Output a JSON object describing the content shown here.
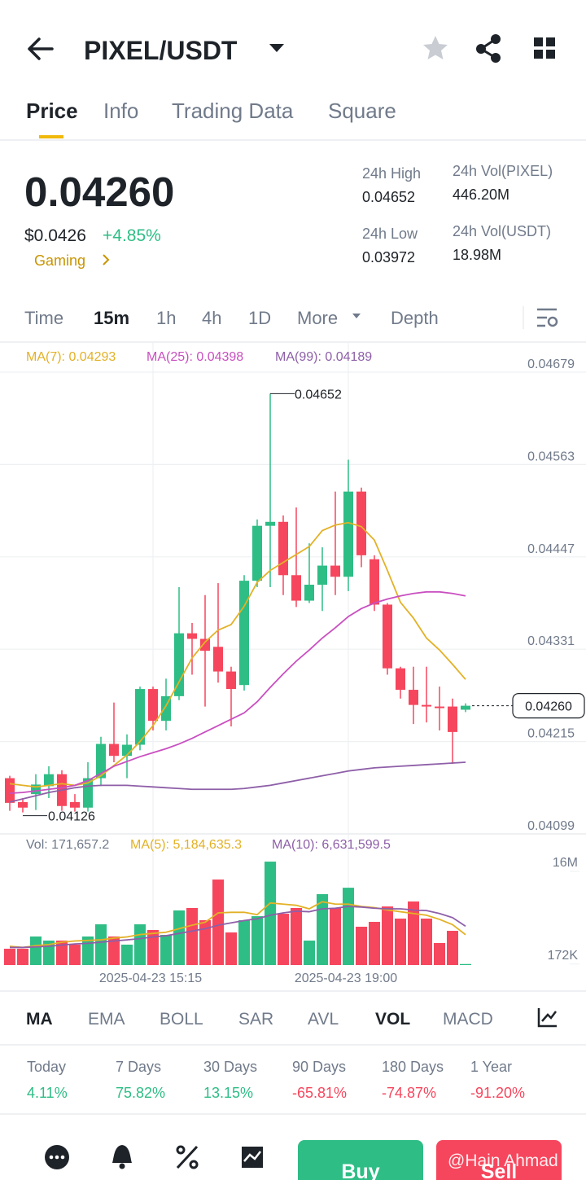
{
  "header": {
    "title": "PIXEL/USDT"
  },
  "tabs": [
    "Price",
    "Info",
    "Trading Data",
    "Square"
  ],
  "ticker": {
    "price": "0.04260",
    "usd": "$0.0426",
    "change": "+4.85%",
    "sector": "Gaming",
    "stats": [
      {
        "label": "24h High",
        "value": "0.04652"
      },
      {
        "label": "24h Vol(PIXEL)",
        "value": "446.20M"
      },
      {
        "label": "24h Low",
        "value": "0.03972"
      },
      {
        "label": "24h Vol(USDT)",
        "value": "18.98M"
      }
    ]
  },
  "intervals": [
    "Time",
    "15m",
    "1h",
    "4h",
    "1D",
    "More",
    "Depth"
  ],
  "chart_data": [
    {
      "type": "candlestick",
      "open": [
        0.04169,
        0.04139,
        0.04149,
        0.04159,
        0.04174,
        0.04139,
        0.04132,
        0.04169,
        0.04212,
        0.04197,
        0.04211,
        0.04281,
        0.04241,
        0.04272,
        0.04351,
        0.04344,
        0.04334,
        0.04303,
        0.04286,
        0.04417,
        0.04486,
        0.04491,
        0.04424,
        0.04392,
        0.04412,
        0.04436,
        0.04422,
        0.04529,
        0.04444,
        0.04387,
        0.04307,
        0.0428,
        0.04261,
        0.04259,
        0.04259,
        0.04255
      ],
      "high": [
        0.04172,
        0.04144,
        0.04174,
        0.04184,
        0.04179,
        0.04149,
        0.04189,
        0.04221,
        0.04264,
        0.04224,
        0.04284,
        0.04284,
        0.04294,
        0.04409,
        0.04364,
        0.04399,
        0.04414,
        0.04309,
        0.04424,
        0.04494,
        0.04652,
        0.04499,
        0.04509,
        0.04464,
        0.04459,
        0.04529,
        0.04569,
        0.04534,
        0.04449,
        0.04389,
        0.04309,
        0.04309,
        0.04309,
        0.04284,
        0.04269,
        0.04263
      ],
      "low": [
        0.04128,
        0.04126,
        0.04129,
        0.04144,
        0.04128,
        0.04127,
        0.04127,
        0.04159,
        0.04189,
        0.04169,
        0.04204,
        0.04229,
        0.04229,
        0.04267,
        0.04299,
        0.04259,
        0.04289,
        0.04234,
        0.04279,
        0.04409,
        0.04409,
        0.04399,
        0.04384,
        0.04389,
        0.04379,
        0.04399,
        0.04404,
        0.04434,
        0.04379,
        0.04299,
        0.04269,
        0.04237,
        0.04239,
        0.04229,
        0.04187,
        0.04252
      ],
      "close": [
        0.04138,
        0.04132,
        0.04161,
        0.04174,
        0.04134,
        0.04132,
        0.04169,
        0.04212,
        0.04197,
        0.04211,
        0.04281,
        0.04241,
        0.04272,
        0.04351,
        0.04344,
        0.04329,
        0.04303,
        0.04281,
        0.04417,
        0.04486,
        0.04491,
        0.04424,
        0.04392,
        0.04412,
        0.04436,
        0.04422,
        0.04529,
        0.04449,
        0.04387,
        0.04307,
        0.0428,
        0.04261,
        0.04259,
        0.04257,
        0.04227,
        0.0426
      ],
      "up_color": "#2ebd85",
      "down_color": "#f6465d",
      "ylim": [
        0.04099,
        0.04679
      ],
      "yticks": [
        0.04679,
        0.04563,
        0.04447,
        0.04331,
        0.04215,
        0.04099
      ],
      "grid": true,
      "series": [
        {
          "name": "MA(7): 0.04293",
          "color": "#e3b126",
          "values": [
            0.04162,
            0.0416,
            0.04158,
            0.0416,
            0.04162,
            0.0416,
            0.04163,
            0.04172,
            0.04185,
            0.04198,
            0.04215,
            0.04235,
            0.0426,
            0.0429,
            0.0432,
            0.0434,
            0.04355,
            0.04362,
            0.04385,
            0.04415,
            0.0443,
            0.0444,
            0.0445,
            0.0446,
            0.0448,
            0.04487,
            0.0449,
            0.04485,
            0.04468,
            0.0443,
            0.0439,
            0.0437,
            0.04345,
            0.0433,
            0.04312,
            0.04293
          ]
        },
        {
          "name": "MA(25): 0.04398",
          "color": "#c94fc0",
          "values": [
            0.0415,
            0.04151,
            0.04153,
            0.04155,
            0.04157,
            0.0416,
            0.04166,
            0.04175,
            0.04184,
            0.0419,
            0.04196,
            0.04201,
            0.04206,
            0.04212,
            0.04219,
            0.04227,
            0.04235,
            0.04243,
            0.04251,
            0.04265,
            0.04283,
            0.043,
            0.04316,
            0.0433,
            0.04345,
            0.04358,
            0.04372,
            0.04382,
            0.04389,
            0.04394,
            0.04398,
            0.04401,
            0.04403,
            0.04403,
            0.04401,
            0.04398
          ]
        },
        {
          "name": "MA(99): 0.04189",
          "color": "#8e5fa8",
          "values": [
            0.04139,
            0.04143,
            0.04147,
            0.04151,
            0.04154,
            0.04157,
            0.04159,
            0.0416,
            0.0416,
            0.0416,
            0.04159,
            0.04158,
            0.04157,
            0.04156,
            0.04155,
            0.04155,
            0.04155,
            0.04155,
            0.04156,
            0.04158,
            0.0416,
            0.04163,
            0.04166,
            0.04169,
            0.04172,
            0.04175,
            0.04178,
            0.0418,
            0.04182,
            0.04183,
            0.04184,
            0.04185,
            0.04186,
            0.04187,
            0.04188,
            0.04189
          ]
        }
      ],
      "annotations": {
        "high": "0.04652",
        "low": "0.04126",
        "last": "0.04260"
      }
    },
    {
      "type": "bar",
      "legend": "Vol: 171,657.2",
      "categories": [
        null,
        null,
        null,
        null,
        null,
        null,
        null,
        null,
        null,
        null,
        null,
        "2025-04-23 15:15",
        null,
        null,
        null,
        null,
        null,
        null,
        null,
        null,
        null,
        null,
        null,
        null,
        null,
        null,
        "2025-04-23 19:00",
        null,
        null,
        null,
        null,
        null,
        null,
        null,
        null,
        null
      ],
      "values": [
        2780000,
        2780000,
        4870000,
        4170000,
        4170000,
        3480000,
        4870000,
        6950000,
        4870000,
        3480000,
        6950000,
        5980000,
        5150000,
        9320000,
        9740000,
        7650000,
        14600000,
        5560000,
        7650000,
        8340000,
        17660000,
        8760000,
        9740000,
        4170000,
        12100000,
        9740000,
        13200000,
        6540000,
        7370000,
        10000000,
        7930000,
        10850000,
        7930000,
        3760000,
        5840000,
        171657.2
      ],
      "ylim": [
        0,
        18500000
      ],
      "yticks": [
        {
          "value": 16000000,
          "label": "16M"
        },
        {
          "value": 172000,
          "label": "172K"
        }
      ],
      "series": [
        {
          "name": "MA(5): 5,184,635.3",
          "color": "#e3b126",
          "values": [
            3200000,
            3000000,
            3300000,
            3500000,
            3900000,
            4100000,
            4200000,
            4300000,
            4600000,
            4800000,
            5200000,
            5400000,
            5600000,
            6200000,
            6800000,
            7300000,
            8900000,
            9000000,
            9000000,
            8600000,
            10600000,
            10400000,
            10200000,
            9600000,
            10800000,
            10400000,
            10400000,
            10000000,
            9800000,
            9400000,
            9100000,
            8800000,
            8500000,
            7800000,
            6900000,
            5184635.3
          ]
        },
        {
          "name": "MA(10): 6,631,599.5",
          "color": "#8e5fa8",
          "values": [
            3000000,
            3000000,
            3100000,
            3200000,
            3400000,
            3600000,
            3700000,
            3900000,
            4100000,
            4300000,
            4500000,
            4800000,
            5000000,
            5400000,
            5800000,
            6200000,
            6800000,
            7200000,
            7600000,
            7900000,
            8500000,
            8900000,
            9200000,
            9100000,
            9600000,
            9700000,
            10000000,
            9900000,
            9700000,
            9600000,
            9600000,
            9400000,
            9300000,
            8800000,
            8100000,
            6631599.5
          ]
        }
      ]
    }
  ],
  "indicators": [
    "MA",
    "EMA",
    "BOLL",
    "SAR",
    "AVL",
    "VOL",
    "MACD"
  ],
  "performance": [
    {
      "label": "Today",
      "value": "4.11%"
    },
    {
      "label": "7 Days",
      "value": "75.82%"
    },
    {
      "label": "30 Days",
      "value": "13.15%"
    },
    {
      "label": "90 Days",
      "value": "-65.81%"
    },
    {
      "label": "180 Days",
      "value": "-74.87%"
    },
    {
      "label": "1 Year",
      "value": "-91.20%"
    }
  ],
  "actions": {
    "buy": "Buy",
    "sell": "Sell"
  },
  "watermark": "@Hain Ahmad"
}
